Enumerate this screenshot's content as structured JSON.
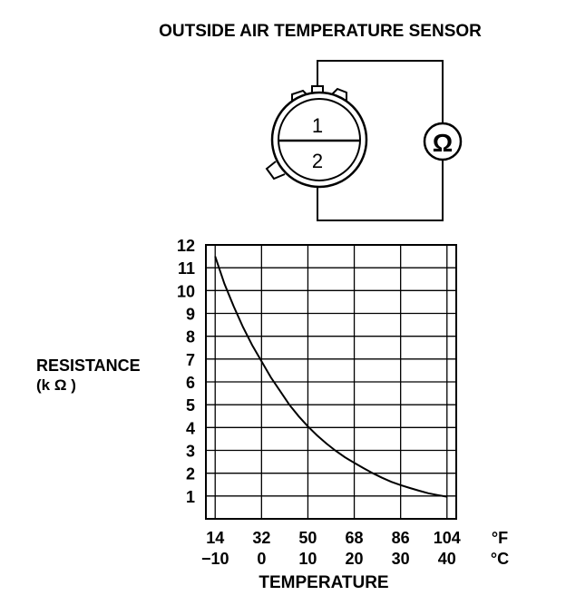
{
  "title": "OUTSIDE AIR TEMPERATURE SENSOR",
  "connector": {
    "pin1": "1",
    "pin2": "2",
    "meter_symbol": "Ω"
  },
  "chart_data": {
    "type": "line",
    "ylabel": "RESISTANCE",
    "ylabel_unit": "(k Ω )",
    "xlabel": "TEMPERATURE",
    "ylim": [
      0,
      12
    ],
    "y_ticks": [
      "1",
      "2",
      "3",
      "4",
      "5",
      "6",
      "7",
      "8",
      "9",
      "10",
      "11",
      "12"
    ],
    "xlim_celsius": [
      -12,
      42
    ],
    "x_ticks_f": [
      "14",
      "32",
      "50",
      "68",
      "86",
      "104"
    ],
    "x_ticks_c": [
      "−10",
      "0",
      "10",
      "20",
      "30",
      "40"
    ],
    "x_unit_f": "°F",
    "x_unit_c": "°C",
    "grid": true,
    "series": [
      {
        "x": [
          -10,
          -8,
          -6,
          -4,
          -2,
          0,
          2,
          4,
          6,
          8,
          10,
          12,
          14,
          16,
          18,
          20,
          22,
          24,
          26,
          28,
          30,
          32,
          34,
          36,
          38,
          40
        ],
        "y": [
          11.5,
          10.3,
          9.3,
          8.4,
          7.6,
          6.9,
          6.2,
          5.6,
          5.0,
          4.5,
          4.05,
          3.65,
          3.3,
          2.98,
          2.7,
          2.45,
          2.22,
          2.0,
          1.8,
          1.62,
          1.48,
          1.35,
          1.23,
          1.12,
          1.04,
          0.97
        ]
      }
    ]
  }
}
